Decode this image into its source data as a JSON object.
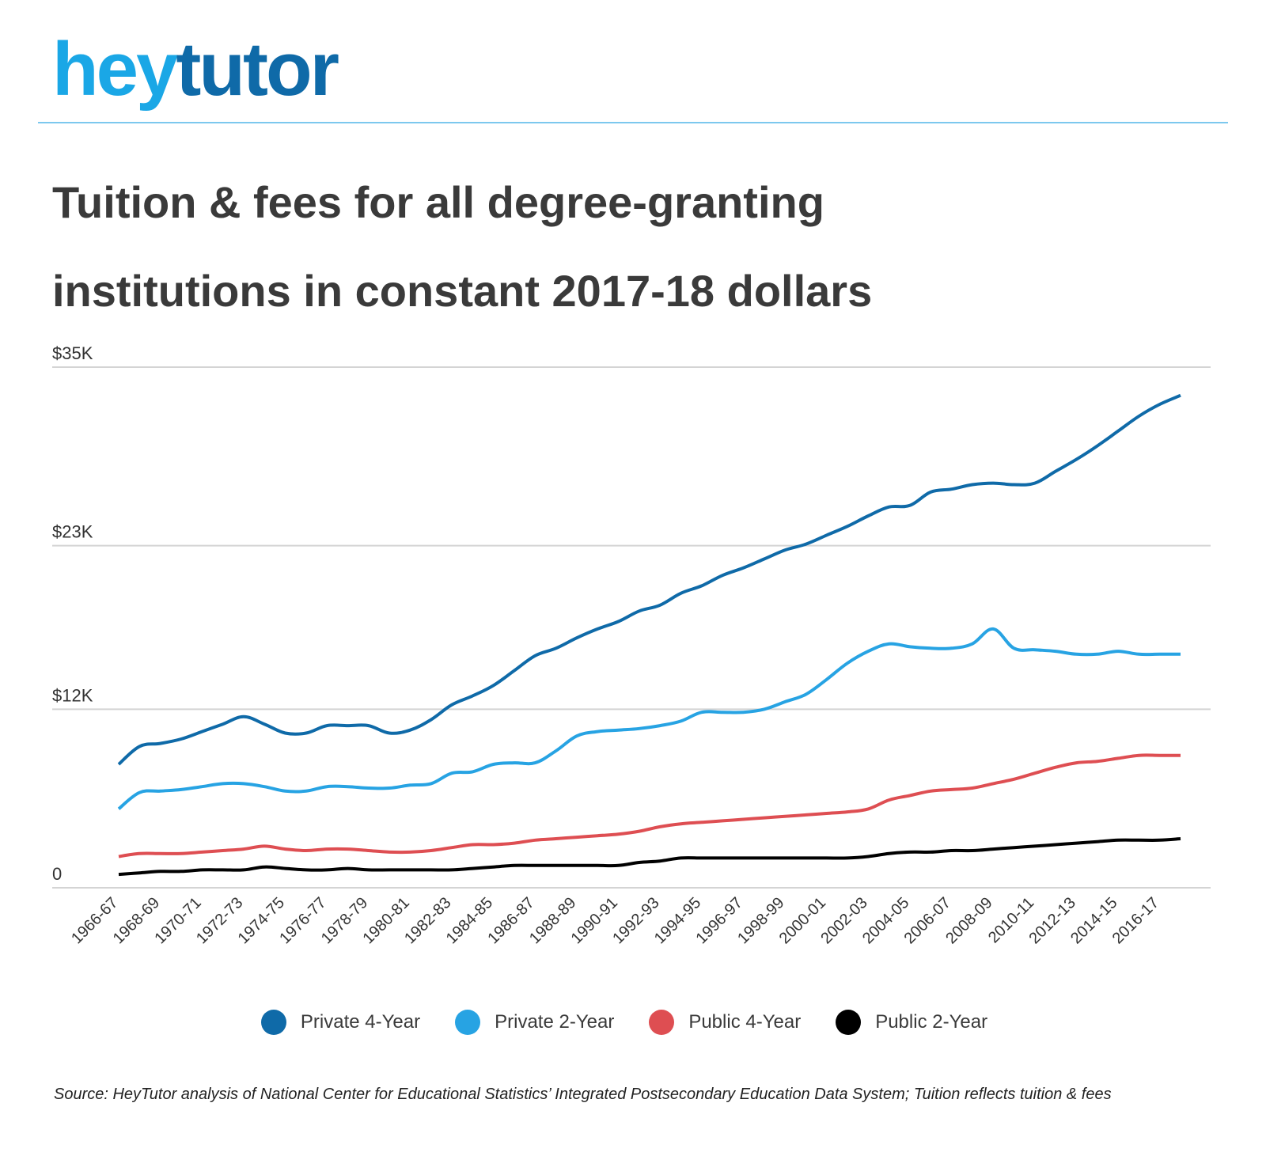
{
  "logo": {
    "hey": "hey",
    "tutor": "tutor"
  },
  "header": {
    "title_line1": "Tuition & fees for all degree-granting",
    "title_line2": "institutions in constant 2017-18 dollars"
  },
  "source_note": "Source: HeyTutor analysis of National Center for Educational Statistics’ Integrated Postsecondary Education Data System; Tuition reflects tuition & fees",
  "chart_data": {
    "type": "line",
    "title": "Tuition & fees for all degree-granting institutions in constant 2017-18 dollars",
    "xlabel": "",
    "ylabel": "",
    "ylim": [
      0,
      35000
    ],
    "yticks": [
      0,
      12000,
      23000,
      35000
    ],
    "ytick_labels": [
      "0",
      "$12K",
      "$23K",
      "$35K"
    ],
    "grid": true,
    "legend_position": "bottom",
    "x": [
      "1966-67",
      "1967-68",
      "1968-69",
      "1969-70",
      "1970-71",
      "1971-72",
      "1972-73",
      "1973-74",
      "1974-75",
      "1975-76",
      "1976-77",
      "1977-78",
      "1978-79",
      "1979-80",
      "1980-81",
      "1981-82",
      "1982-83",
      "1983-84",
      "1984-85",
      "1985-86",
      "1986-87",
      "1987-88",
      "1988-89",
      "1989-90",
      "1990-91",
      "1991-92",
      "1992-93",
      "1993-94",
      "1994-95",
      "1995-96",
      "1996-97",
      "1997-98",
      "1998-99",
      "1999-00",
      "2000-01",
      "2001-02",
      "2002-03",
      "2003-04",
      "2004-05",
      "2005-06",
      "2006-07",
      "2007-08",
      "2008-09",
      "2009-10",
      "2010-11",
      "2011-12",
      "2012-13",
      "2013-14",
      "2014-15",
      "2015-16",
      "2016-17",
      "2017-18"
    ],
    "x_tick_labels": [
      "1966-67",
      "1968-69",
      "1970-71",
      "1972-73",
      "1974-75",
      "1976-77",
      "1978-79",
      "1980-81",
      "1982-83",
      "1984-85",
      "1986-87",
      "1988-89",
      "1990-91",
      "1992-93",
      "1994-95",
      "1996-97",
      "1998-99",
      "2000-01",
      "2002-03",
      "2004-05",
      "2006-07",
      "2008-09",
      "2010-11",
      "2012-13",
      "2014-15",
      "2016-17"
    ],
    "series": [
      {
        "name": "Private 4-Year",
        "color": "#0f6aa8",
        "values": [
          8300,
          9500,
          9700,
          10000,
          10500,
          11000,
          11500,
          11000,
          10400,
          10400,
          10900,
          10900,
          10900,
          10400,
          10600,
          11300,
          12300,
          12900,
          13600,
          14600,
          15600,
          16100,
          16800,
          17400,
          17900,
          18600,
          19000,
          19800,
          20300,
          21000,
          21500,
          22100,
          22700,
          23100,
          23700,
          24300,
          25000,
          25600,
          25700,
          26600,
          26800,
          27100,
          27200,
          27100,
          27200,
          28000,
          28800,
          29700,
          30700,
          31700,
          32500,
          33100
        ]
      },
      {
        "name": "Private 2-Year",
        "color": "#27a3e3",
        "values": [
          5300,
          6400,
          6500,
          6600,
          6800,
          7000,
          7000,
          6800,
          6500,
          6500,
          6800,
          6800,
          6700,
          6700,
          6900,
          7000,
          7700,
          7800,
          8300,
          8400,
          8400,
          9200,
          10200,
          10500,
          10600,
          10700,
          10900,
          11200,
          11800,
          11800,
          11800,
          12000,
          12500,
          13000,
          14000,
          15100,
          15900,
          16400,
          16200,
          16100,
          16100,
          16400,
          17400,
          16100,
          16000,
          15900,
          15700,
          15700,
          15900,
          15700,
          15700,
          15700
        ]
      },
      {
        "name": "Public 4-Year",
        "color": "#de4e52",
        "values": [
          2100,
          2300,
          2300,
          2300,
          2400,
          2500,
          2600,
          2800,
          2600,
          2500,
          2600,
          2600,
          2500,
          2400,
          2400,
          2500,
          2700,
          2900,
          2900,
          3000,
          3200,
          3300,
          3400,
          3500,
          3600,
          3800,
          4100,
          4300,
          4400,
          4500,
          4600,
          4700,
          4800,
          4900,
          5000,
          5100,
          5300,
          5900,
          6200,
          6500,
          6600,
          6700,
          7000,
          7300,
          7700,
          8100,
          8400,
          8500,
          8700,
          8900,
          8900,
          8900
        ]
      },
      {
        "name": "Public 2-Year",
        "color": "#000000",
        "values": [
          900,
          1000,
          1100,
          1100,
          1200,
          1200,
          1200,
          1400,
          1300,
          1200,
          1200,
          1300,
          1200,
          1200,
          1200,
          1200,
          1200,
          1300,
          1400,
          1500,
          1500,
          1500,
          1500,
          1500,
          1500,
          1700,
          1800,
          2000,
          2000,
          2000,
          2000,
          2000,
          2000,
          2000,
          2000,
          2000,
          2100,
          2300,
          2400,
          2400,
          2500,
          2500,
          2600,
          2700,
          2800,
          2900,
          3000,
          3100,
          3200,
          3200,
          3200,
          3300
        ]
      }
    ]
  }
}
